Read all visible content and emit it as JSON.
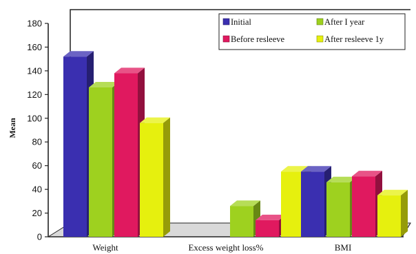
{
  "chart_data": {
    "type": "bar",
    "title": "",
    "xlabel": "",
    "ylabel": "Mean",
    "ylim": [
      0,
      180
    ],
    "yticks": [
      0,
      20,
      40,
      60,
      80,
      100,
      120,
      140,
      160,
      180
    ],
    "categories": [
      "Weight",
      "Excess weight loss%",
      "BMI"
    ],
    "series": [
      {
        "name": "Initial",
        "color": "#3a2fb0",
        "values": [
          152,
          null,
          55
        ]
      },
      {
        "name": "After I year",
        "color": "#9ed11f",
        "values": [
          126,
          26,
          46
        ]
      },
      {
        "name": "Before resleeve",
        "color": "#e0195f",
        "values": [
          138,
          14,
          51
        ]
      },
      {
        "name": "After resleeve 1y",
        "color": "#e6f00e",
        "values": [
          96,
          55,
          35
        ]
      }
    ],
    "legend_position": "top-right",
    "grid": false
  }
}
